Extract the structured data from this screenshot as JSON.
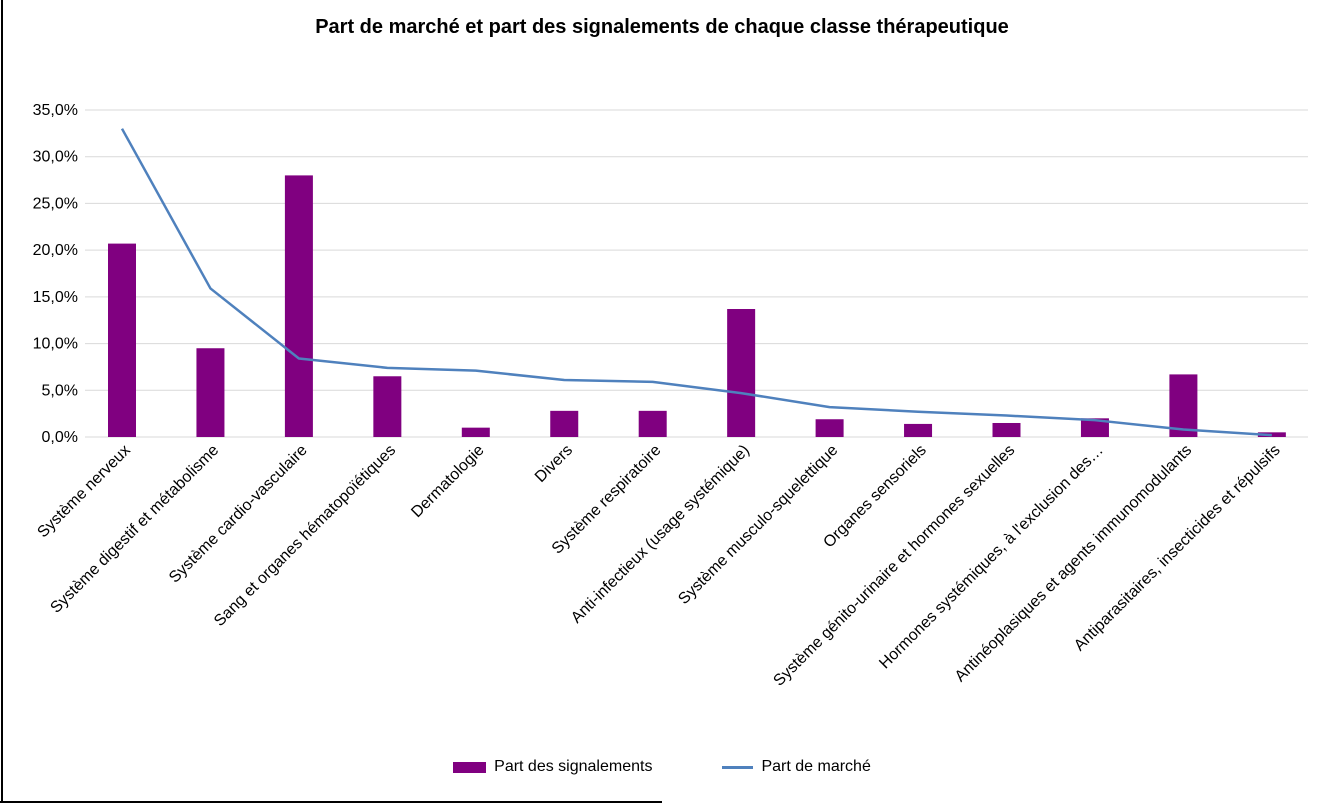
{
  "chart": {
    "title": "Part de marché et part des signalements de chaque classe thérapeutique",
    "legend": {
      "bar_label": "Part des signalements",
      "line_label": "Part de marché"
    }
  },
  "colors": {
    "bar": "#800080",
    "line": "#4F81BD",
    "gridline": "#D9D9D9",
    "text": "#000000",
    "border": "#000000"
  },
  "chart_data": {
    "type": "bar",
    "subtype": "combo-bar-line",
    "title": "Part de marché et part des signalements de chaque classe thérapeutique",
    "categories": [
      "Système nerveux",
      "Système digestif et métabolisme",
      "Système cardio-vasculaire",
      "Sang et organes hématopoïétiques",
      "Dermatologie",
      "Divers",
      "Système respiratoire",
      "Anti-infectieux (usage systémique)",
      "Système musculo-squelettique",
      "Organes sensoriels",
      "Système génito-urinaire et hormones sexuelles",
      "Hormones systémiques, à l'exclusion des…",
      "Antinéoplasiques et agents immunomodulants",
      "Antiparasitaires, insecticides et répulsifs"
    ],
    "series": [
      {
        "name": "Part des signalements",
        "type": "bar",
        "color": "#800080",
        "values": [
          20.7,
          9.5,
          28.0,
          6.5,
          1.0,
          2.8,
          2.8,
          13.7,
          1.9,
          1.4,
          1.5,
          2.0,
          6.7,
          0.5
        ]
      },
      {
        "name": "Part de marché",
        "type": "line",
        "color": "#4F81BD",
        "values": [
          33.0,
          15.9,
          8.4,
          7.4,
          7.1,
          6.1,
          5.9,
          4.7,
          3.2,
          2.7,
          2.3,
          1.8,
          0.8,
          0.2
        ]
      }
    ],
    "xlabel": "",
    "ylabel": "",
    "ylim": [
      0,
      35
    ],
    "ytick_step": 5,
    "ytick_format": "percent-comma-1dp",
    "grid": true,
    "legend_position": "bottom"
  }
}
